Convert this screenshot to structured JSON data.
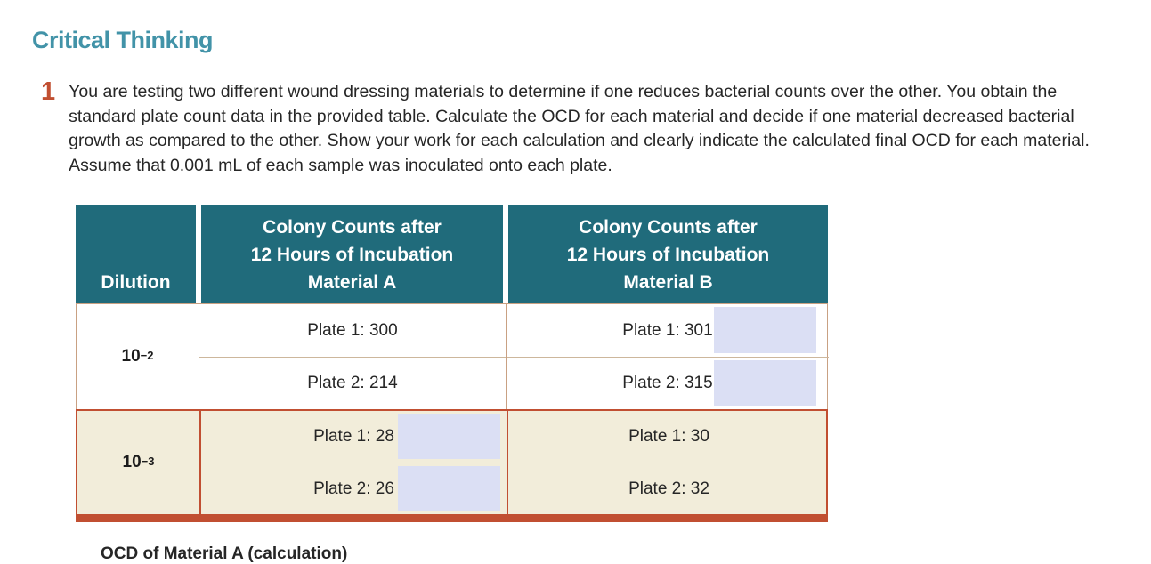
{
  "colors": {
    "heading_teal": "#4293a8",
    "question_number_orange": "#c14f31",
    "table_header_teal": "#206b7b",
    "table_border_orange": "#c14f31",
    "row_cream": "#f2edda",
    "highlight_lavender": "#dbdff4"
  },
  "heading": "Critical Thinking",
  "question": {
    "number": "1",
    "text": "You are testing two different wound dressing materials to determine if one reduces bacterial counts over the other. You obtain the standard plate count data in the provided table. Calculate the OCD for each material and decide if one material decreased bacterial growth as compared to the other. Show your work for each calculation and clearly indicate the calculated final OCD for each material. Assume that 0.001 mL of each sample was inoculated onto each plate."
  },
  "table": {
    "header": {
      "dilution": "Dilution",
      "material_a": {
        "line1": "Colony Counts after",
        "line2": "12 Hours of Incubation",
        "line3": "Material A"
      },
      "material_b": {
        "line1": "Colony Counts after",
        "line2": "12 Hours of Incubation",
        "line3": "Material B"
      }
    },
    "groups": [
      {
        "dilution_base": "10",
        "dilution_exp": "−2",
        "a1": "Plate 1: 300",
        "a2": "Plate 2: 214",
        "b1": "Plate 1: 301",
        "b2": "Plate 2: 315"
      },
      {
        "dilution_base": "10",
        "dilution_exp": "−3",
        "a1": "Plate 1: 28",
        "a2": "Plate 2: 26",
        "b1": "Plate 1: 30",
        "b2": "Plate 2: 32"
      }
    ]
  },
  "footer_partial": "OCD of Material A (calculation)"
}
